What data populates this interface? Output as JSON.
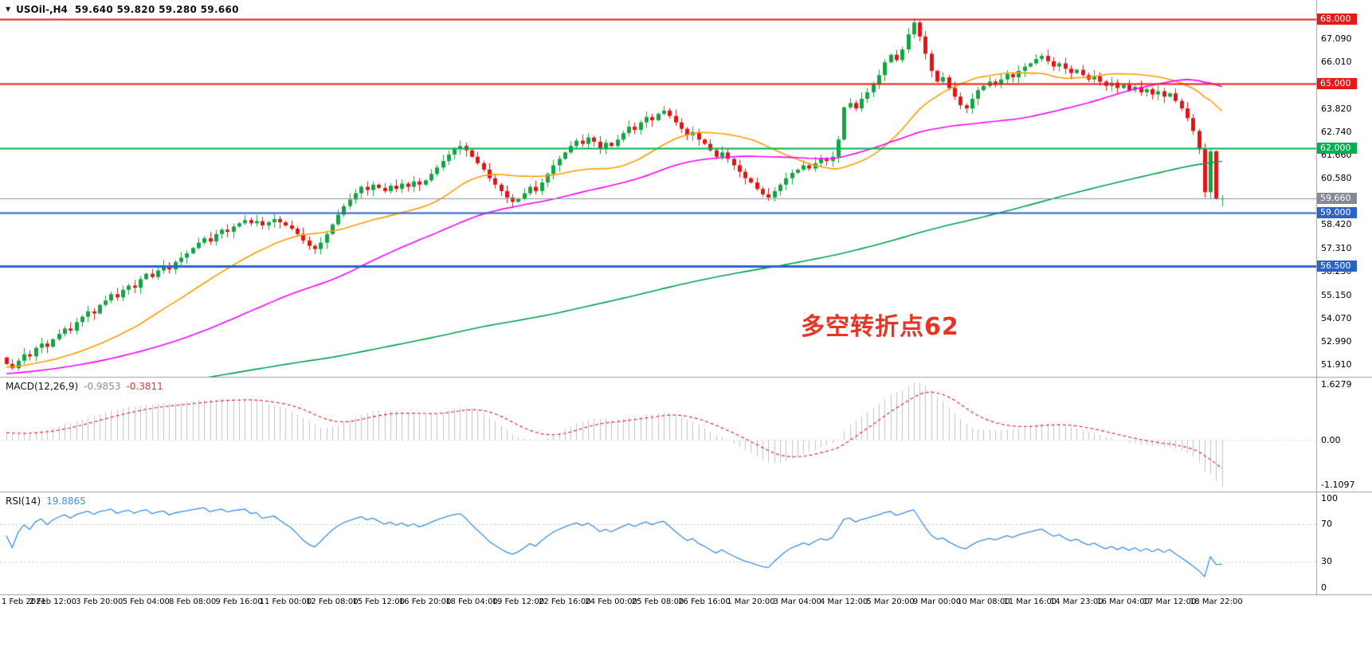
{
  "window": {
    "dropdown_icon": "▼",
    "title_symbol": "USOil-,H4",
    "title_ohlc": "59.640 59.820 59.280 59.660"
  },
  "colors": {
    "background": "#ffffff",
    "candle_up": "#17a343",
    "candle_down": "#e01515",
    "price_line": "#8a919c",
    "price_badge_bg": "#848a94",
    "macd_hist": "#c2c2c2",
    "macd_signal": "#e03030",
    "rsi_line": "#3e8ede",
    "level_line": "#c9c9c9",
    "separator": "#9e9e9e",
    "axis_text": "#000000"
  },
  "chart_data": {
    "type": "candlestick",
    "symbol": "USOil-",
    "period": "H4",
    "title": "USOil-,H4 59.640 59.820 59.280 59.660",
    "last_candle": {
      "open": 59.64,
      "high": 59.82,
      "low": 59.28,
      "close": 59.66
    },
    "price_line": {
      "price": 59.66,
      "label": "59.660"
    },
    "closes": [
      51.95,
      51.75,
      52.1,
      52.4,
      52.3,
      52.7,
      52.9,
      52.75,
      53.1,
      53.35,
      53.6,
      53.5,
      53.9,
      54.15,
      54.4,
      54.3,
      54.7,
      54.9,
      55.2,
      55.05,
      55.4,
      55.6,
      55.5,
      55.9,
      56.15,
      56.0,
      56.3,
      56.5,
      56.35,
      56.7,
      56.9,
      57.1,
      57.35,
      57.6,
      57.8,
      57.65,
      58.0,
      58.2,
      58.1,
      58.35,
      58.5,
      58.65,
      58.5,
      58.6,
      58.4,
      58.55,
      58.7,
      58.55,
      58.4,
      58.25,
      58.0,
      57.7,
      57.45,
      57.3,
      57.6,
      58.0,
      58.45,
      58.9,
      59.3,
      59.6,
      59.9,
      60.2,
      60.05,
      60.3,
      60.15,
      60.0,
      60.25,
      60.1,
      60.35,
      60.2,
      60.45,
      60.3,
      60.5,
      60.8,
      61.1,
      61.4,
      61.7,
      61.95,
      62.1,
      61.9,
      61.6,
      61.3,
      61.0,
      60.6,
      60.3,
      60.0,
      59.7,
      59.5,
      59.65,
      59.9,
      60.2,
      60.0,
      60.4,
      60.8,
      61.2,
      61.5,
      61.8,
      62.1,
      62.35,
      62.2,
      62.5,
      62.3,
      62.0,
      62.25,
      62.1,
      62.4,
      62.7,
      63.0,
      62.85,
      63.2,
      63.45,
      63.3,
      63.6,
      63.75,
      63.5,
      63.2,
      62.9,
      62.6,
      62.75,
      62.4,
      62.2,
      61.9,
      61.6,
      61.8,
      61.5,
      61.2,
      60.9,
      60.6,
      60.4,
      60.1,
      59.85,
      59.7,
      60.0,
      60.3,
      60.6,
      60.85,
      61.0,
      61.2,
      61.05,
      61.3,
      61.5,
      61.4,
      61.6,
      62.4,
      63.9,
      64.1,
      63.85,
      64.3,
      64.6,
      65.0,
      65.4,
      66.0,
      66.35,
      66.1,
      66.6,
      67.3,
      67.85,
      67.2,
      66.4,
      65.6,
      65.1,
      65.3,
      64.8,
      64.4,
      64.0,
      63.85,
      64.3,
      64.7,
      64.9,
      65.1,
      64.95,
      65.2,
      65.45,
      65.3,
      65.6,
      65.8,
      65.95,
      66.15,
      66.3,
      66.05,
      65.8,
      65.95,
      65.7,
      65.5,
      65.65,
      65.4,
      65.2,
      65.35,
      65.1,
      64.9,
      65.05,
      64.8,
      64.95,
      64.7,
      64.85,
      64.6,
      64.75,
      64.5,
      64.65,
      64.4,
      64.55,
      64.2,
      63.85,
      63.4,
      62.8,
      61.95,
      59.95,
      61.85,
      59.64,
      59.66
    ],
    "x_labels": [
      "1 Feb 2021",
      "2 Feb 12:00",
      "3 Feb 20:00",
      "5 Feb 04:00",
      "8 Feb 08:00",
      "9 Feb 16:00",
      "11 Feb 00:00",
      "12 Feb 08:00",
      "15 Feb 12:00",
      "16 Feb 20:00",
      "18 Feb 04:00",
      "19 Feb 12:00",
      "22 Feb 16:00",
      "24 Feb 00:00",
      "25 Feb 08:00",
      "26 Feb 16:00",
      "1 Mar 20:00",
      "3 Mar 04:00",
      "4 Mar 12:00",
      "5 Mar 20:00",
      "9 Mar 00:00",
      "10 Mar 08:00",
      "11 Mar 16:00",
      "14 Mar 23:00",
      "16 Mar 04:00",
      "17 Mar 12:00",
      "18 Mar 22:00"
    ],
    "y_axis_ticks": [
      "67.090",
      "66.010",
      "63.820",
      "62.740",
      "61.660",
      "60.580",
      "58.420",
      "57.310",
      "56.230",
      "55.150",
      "54.070",
      "52.990",
      "51.910"
    ],
    "horizontal_lines": [
      {
        "price": 68.0,
        "label": "68.000",
        "color": "#e31b1b",
        "width": 2
      },
      {
        "price": 65.0,
        "label": "65.000",
        "color": "#e31b1b",
        "width": 2
      },
      {
        "price": 62.0,
        "label": "62.000",
        "color": "#00b050",
        "width": 2
      },
      {
        "price": 59.0,
        "label": "59.000",
        "color": "#2b64c8",
        "width": 2
      },
      {
        "price": 56.5,
        "label": "56.500",
        "color": "#2b64c8",
        "width": 3
      }
    ],
    "moving_averages": [
      {
        "name": "fast-ma",
        "period": 24,
        "color": "#ff9d00"
      },
      {
        "name": "medium-ma",
        "period": 60,
        "color": "#ff00ff"
      },
      {
        "name": "slow-ma",
        "period": 200,
        "color": "#00a050"
      }
    ],
    "annotation": {
      "text": "多空转折点62",
      "color": "#ea3324"
    },
    "indicators": [
      {
        "id": "macd",
        "label_name": "MACD(12,26,9)",
        "value_main": "-0.9853",
        "value_signal": "-0.3811",
        "fast": 12,
        "slow": 26,
        "signal": 9,
        "axis_max": "1.6279",
        "axis_zero": "0.00",
        "axis_min": "-1.1097"
      },
      {
        "id": "rsi",
        "label_name": "RSI(14)",
        "value": "19.8865",
        "rsi_period": 14,
        "axis": [
          "100",
          "70",
          "30",
          "0"
        ],
        "levels": [
          70,
          30
        ]
      }
    ]
  }
}
